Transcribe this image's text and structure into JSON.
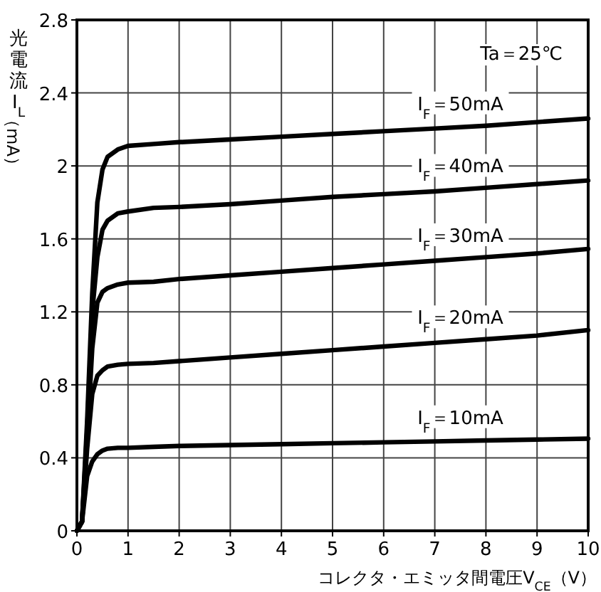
{
  "chart_data": {
    "type": "line",
    "xlabel": "コレクタ・エミッタ間電圧V$_{CE}$（V）",
    "ylabel": "光電流I$_{L}$（mA）",
    "annotations": [
      "Ta＝25℃"
    ],
    "x": [
      0,
      0.1,
      0.2,
      0.3,
      0.4,
      0.5,
      0.6,
      0.8,
      1,
      1.5,
      2,
      3,
      4,
      5,
      6,
      7,
      8,
      9,
      10
    ],
    "series": [
      {
        "name": "I$_{F}$＝50mA",
        "color": "#000000",
        "values": [
          0,
          0.05,
          0.6,
          1.3,
          1.8,
          1.98,
          2.05,
          2.09,
          2.11,
          2.12,
          2.13,
          2.145,
          2.16,
          2.175,
          2.19,
          2.205,
          2.22,
          2.24,
          2.26
        ]
      },
      {
        "name": "I$_{F}$＝40mA",
        "color": "#000000",
        "values": [
          0,
          0.05,
          0.55,
          1.2,
          1.5,
          1.65,
          1.7,
          1.74,
          1.75,
          1.77,
          1.775,
          1.79,
          1.81,
          1.83,
          1.845,
          1.86,
          1.88,
          1.9,
          1.92
        ]
      },
      {
        "name": "I$_{F}$＝30mA",
        "color": "#000000",
        "values": [
          0,
          0.05,
          0.5,
          1.0,
          1.25,
          1.31,
          1.33,
          1.35,
          1.36,
          1.365,
          1.38,
          1.4,
          1.42,
          1.44,
          1.46,
          1.48,
          1.5,
          1.52,
          1.545
        ]
      },
      {
        "name": "I$_{F}$＝20mA",
        "color": "#000000",
        "values": [
          0,
          0.05,
          0.45,
          0.75,
          0.85,
          0.88,
          0.9,
          0.91,
          0.915,
          0.92,
          0.93,
          0.95,
          0.97,
          0.99,
          1.01,
          1.03,
          1.05,
          1.07,
          1.1
        ]
      },
      {
        "name": "I$_{F}$＝10mA",
        "color": "#000000",
        "values": [
          0,
          0.05,
          0.3,
          0.38,
          0.42,
          0.44,
          0.45,
          0.455,
          0.455,
          0.46,
          0.465,
          0.47,
          0.475,
          0.48,
          0.485,
          0.49,
          0.495,
          0.5,
          0.505
        ]
      }
    ],
    "xlim": [
      0,
      10
    ],
    "ylim": [
      0,
      2.8
    ],
    "xticks": [
      0,
      1,
      2,
      3,
      4,
      5,
      6,
      7,
      8,
      9,
      10
    ],
    "yticks": [
      0,
      0.4,
      0.8,
      1.2,
      1.6,
      2,
      2.4,
      2.8
    ],
    "grid": true,
    "line_style": "solid",
    "marker": "none"
  }
}
